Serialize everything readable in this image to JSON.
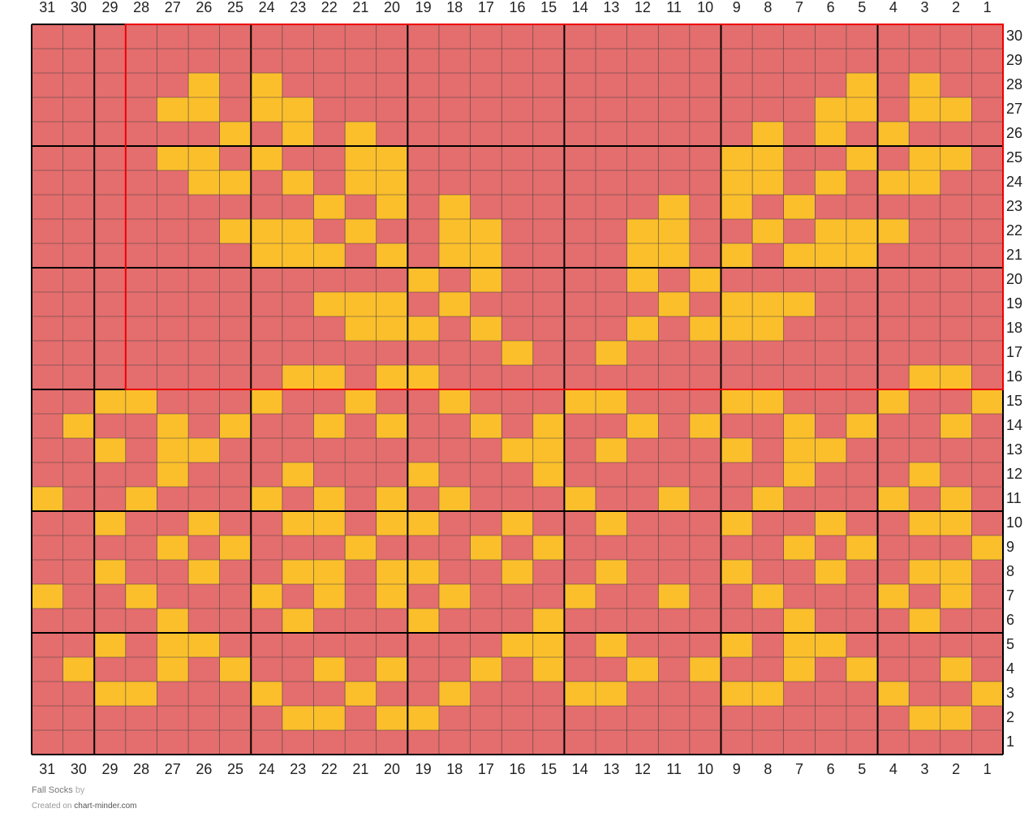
{
  "chart": {
    "column_labels": [
      31,
      30,
      29,
      28,
      27,
      26,
      25,
      24,
      23,
      22,
      21,
      20,
      19,
      18,
      17,
      16,
      15,
      14,
      13,
      12,
      11,
      10,
      9,
      8,
      7,
      6,
      5,
      4,
      3,
      2,
      1
    ],
    "row_labels": [
      30,
      29,
      28,
      27,
      26,
      25,
      24,
      23,
      22,
      21,
      20,
      19,
      18,
      17,
      16,
      15,
      14,
      13,
      12,
      11,
      10,
      9,
      8,
      7,
      6,
      5,
      4,
      3,
      2,
      1
    ],
    "colors": {
      "background": "#e46d6d",
      "contrast": "#fbbf2c"
    },
    "contrast_stitches": [
      [],
      [],
      [
        26,
        24,
        5,
        3
      ],
      [
        27,
        26,
        24,
        23,
        6,
        5,
        3,
        2
      ],
      [
        25,
        23,
        21,
        8,
        6,
        4
      ],
      [
        27,
        26,
        24,
        21,
        20,
        9,
        8,
        5,
        3,
        2
      ],
      [
        26,
        25,
        23,
        21,
        20,
        9,
        8,
        6,
        4,
        3
      ],
      [
        22,
        20,
        18,
        11,
        9,
        7
      ],
      [
        25,
        24,
        23,
        21,
        18,
        17,
        12,
        11,
        8,
        6,
        5,
        4
      ],
      [
        24,
        23,
        22,
        20,
        18,
        17,
        12,
        11,
        9,
        7,
        6,
        5
      ],
      [
        19,
        17,
        12,
        10
      ],
      [
        22,
        21,
        20,
        18,
        11,
        9,
        8,
        7
      ],
      [
        21,
        20,
        19,
        17,
        12,
        10,
        9,
        8
      ],
      [
        16,
        13
      ],
      [
        23,
        22,
        20,
        19,
        3,
        2
      ],
      [
        29,
        28,
        24,
        21,
        18,
        14,
        13,
        9,
        8,
        4,
        1
      ],
      [
        30,
        27,
        25,
        22,
        20,
        17,
        15,
        12,
        10,
        7,
        5,
        2
      ],
      [
        29,
        27,
        26,
        16,
        15,
        13,
        9,
        7,
        6
      ],
      [
        27,
        23,
        19,
        15,
        7,
        3
      ],
      [
        31,
        28,
        24,
        22,
        20,
        18,
        14,
        11,
        8,
        4,
        2
      ],
      [
        29,
        26,
        23,
        22,
        20,
        19,
        16,
        13,
        9,
        6,
        3,
        2
      ],
      [
        27,
        25,
        21,
        17,
        15,
        7,
        5,
        1
      ],
      [
        29,
        26,
        23,
        22,
        20,
        19,
        16,
        13,
        9,
        6,
        3,
        2
      ],
      [
        31,
        28,
        24,
        22,
        20,
        18,
        14,
        11,
        8,
        4,
        2
      ],
      [
        27,
        23,
        19,
        15,
        7,
        3
      ],
      [
        29,
        27,
        26,
        16,
        15,
        13,
        9,
        7,
        6
      ],
      [
        30,
        27,
        25,
        22,
        20,
        17,
        15,
        12,
        10,
        7,
        5,
        2
      ],
      [
        29,
        28,
        24,
        21,
        18,
        14,
        13,
        9,
        8,
        4,
        1
      ],
      [
        23,
        22,
        20,
        19,
        3,
        2
      ],
      []
    ]
  },
  "footer": {
    "title": "Fall Socks",
    "by": "by",
    "created": "Created on",
    "site": "chart-minder.com"
  }
}
